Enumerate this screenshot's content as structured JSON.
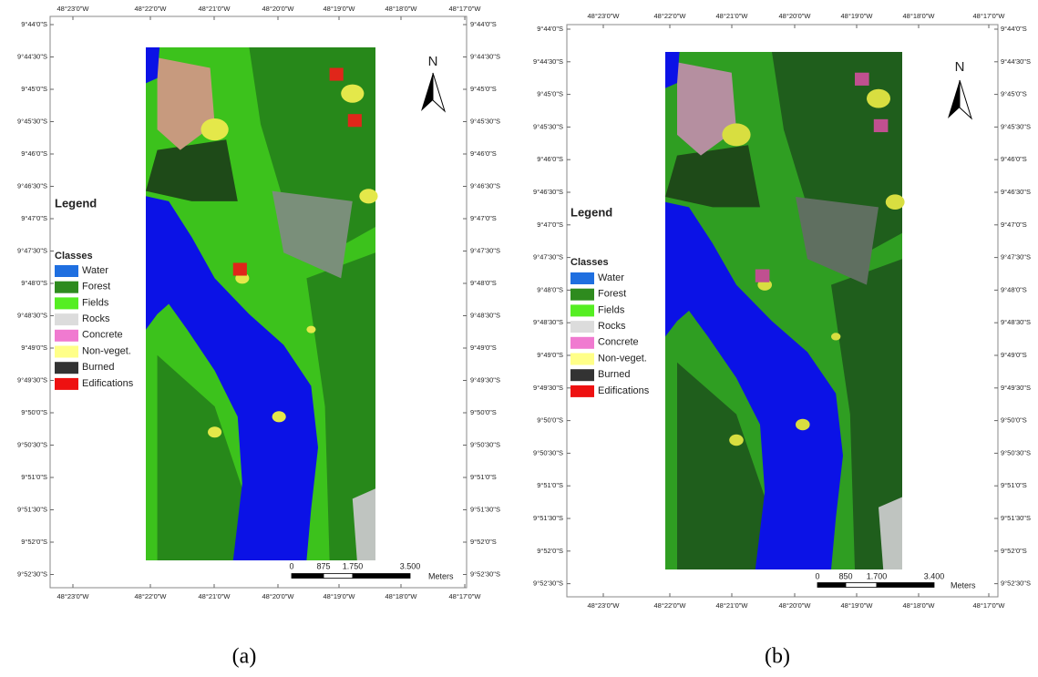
{
  "panels": [
    {
      "caption": "(a)",
      "lon_labels": [
        "48°23'0\"W",
        "48°22'0\"W",
        "48°21'0\"W",
        "48°20'0\"W",
        "48°19'0\"W",
        "48°18'0\"W",
        "48°17'0\"W"
      ],
      "lat_labels": [
        "9°44'0\"S",
        "9°44'30\"S",
        "9°45'0\"S",
        "9°45'30\"S",
        "9°46'0\"S",
        "9°46'30\"S",
        "9°47'0\"S",
        "9°47'30\"S",
        "9°48'0\"S",
        "9°48'30\"S",
        "9°49'0\"S",
        "9°49'30\"S",
        "9°50'0\"S",
        "9°50'30\"S",
        "9°51'0\"S",
        "9°51'30\"S",
        "9°52'0\"S",
        "9°52'30\"S"
      ],
      "north": "N",
      "legend": {
        "title": "Legend",
        "subtitle": "Classes",
        "items": [
          {
            "label": "Water",
            "color": "#1f6fe0"
          },
          {
            "label": "Forest",
            "color": "#2e8b1e"
          },
          {
            "label": "Fields",
            "color": "#55ee22"
          },
          {
            "label": "Rocks",
            "color": "#dcdcdc"
          },
          {
            "label": "Concrete",
            "color": "#f07ad0"
          },
          {
            "label": "Non-veget.",
            "color": "#ffff88"
          },
          {
            "label": "Burned",
            "color": "#333333"
          },
          {
            "label": "Edifications",
            "color": "#ee1111"
          }
        ]
      },
      "scale": {
        "labels": [
          "0",
          "875",
          "1.750",
          "3.500"
        ],
        "unit": "Meters"
      }
    },
    {
      "caption": "(b)",
      "lon_labels": [
        "48°23'0\"W",
        "48°22'0\"W",
        "48°21'0\"W",
        "48°20'0\"W",
        "48°19'0\"W",
        "48°18'0\"W",
        "48°17'0\"W"
      ],
      "lat_labels": [
        "9°44'0\"S",
        "9°44'30\"S",
        "9°45'0\"S",
        "9°45'30\"S",
        "9°46'0\"S",
        "9°46'30\"S",
        "9°47'0\"S",
        "9°47'30\"S",
        "9°48'0\"S",
        "9°48'30\"S",
        "9°49'0\"S",
        "9°49'30\"S",
        "9°50'0\"S",
        "9°50'30\"S",
        "9°51'0\"S",
        "9°51'30\"S",
        "9°52'0\"S",
        "9°52'30\"S"
      ],
      "north": "N",
      "legend": {
        "title": "Legend",
        "subtitle": "Classes",
        "items": [
          {
            "label": "Water",
            "color": "#1f6fe0"
          },
          {
            "label": "Forest",
            "color": "#2e8b1e"
          },
          {
            "label": "Fields",
            "color": "#55ee22"
          },
          {
            "label": "Rocks",
            "color": "#dcdcdc"
          },
          {
            "label": "Concrete",
            "color": "#f07ad0"
          },
          {
            "label": "Non-veget.",
            "color": "#ffff88"
          },
          {
            "label": "Burned",
            "color": "#333333"
          },
          {
            "label": "Edifications",
            "color": "#ee1111"
          }
        ]
      },
      "scale": {
        "labels": [
          "0",
          "850",
          "1.700",
          "3.400"
        ],
        "unit": "Meters"
      }
    }
  ]
}
